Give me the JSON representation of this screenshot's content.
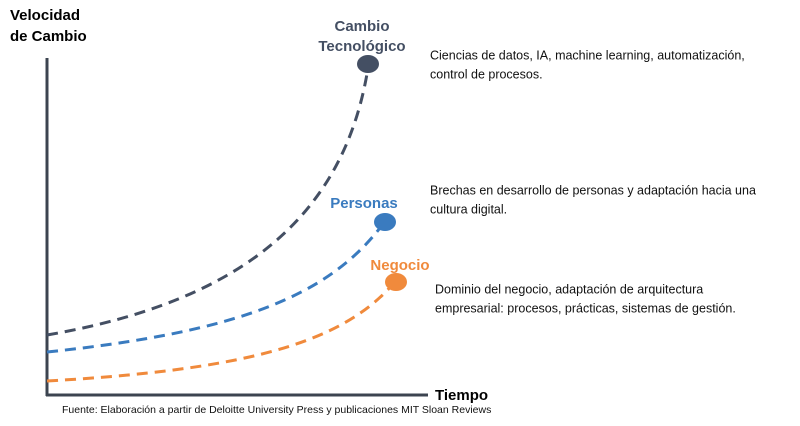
{
  "y_axis_label": [
    "Velocidad",
    "de Cambio"
  ],
  "x_axis_label": "Tiempo",
  "curves": [
    {
      "label": [
        "Cambio",
        "Tecnológico"
      ],
      "description": [
        "Ciencias de datos,  IA, machine learning, automatización,",
        "control de procesos."
      ]
    },
    {
      "label": [
        "Personas"
      ],
      "description": [
        "Brechas en desarrollo de personas y adaptación hacia una",
        "cultura digital."
      ]
    },
    {
      "label": [
        "Negocio"
      ],
      "description": [
        "Dominio del negocio, adaptación de arquitectura",
        "empresarial: procesos, prácticas, sistemas de gestión."
      ]
    }
  ],
  "source": "Fuente: Elaboración a partir de Deloitte University Press y publicaciones MIT Sloan Reviews"
}
